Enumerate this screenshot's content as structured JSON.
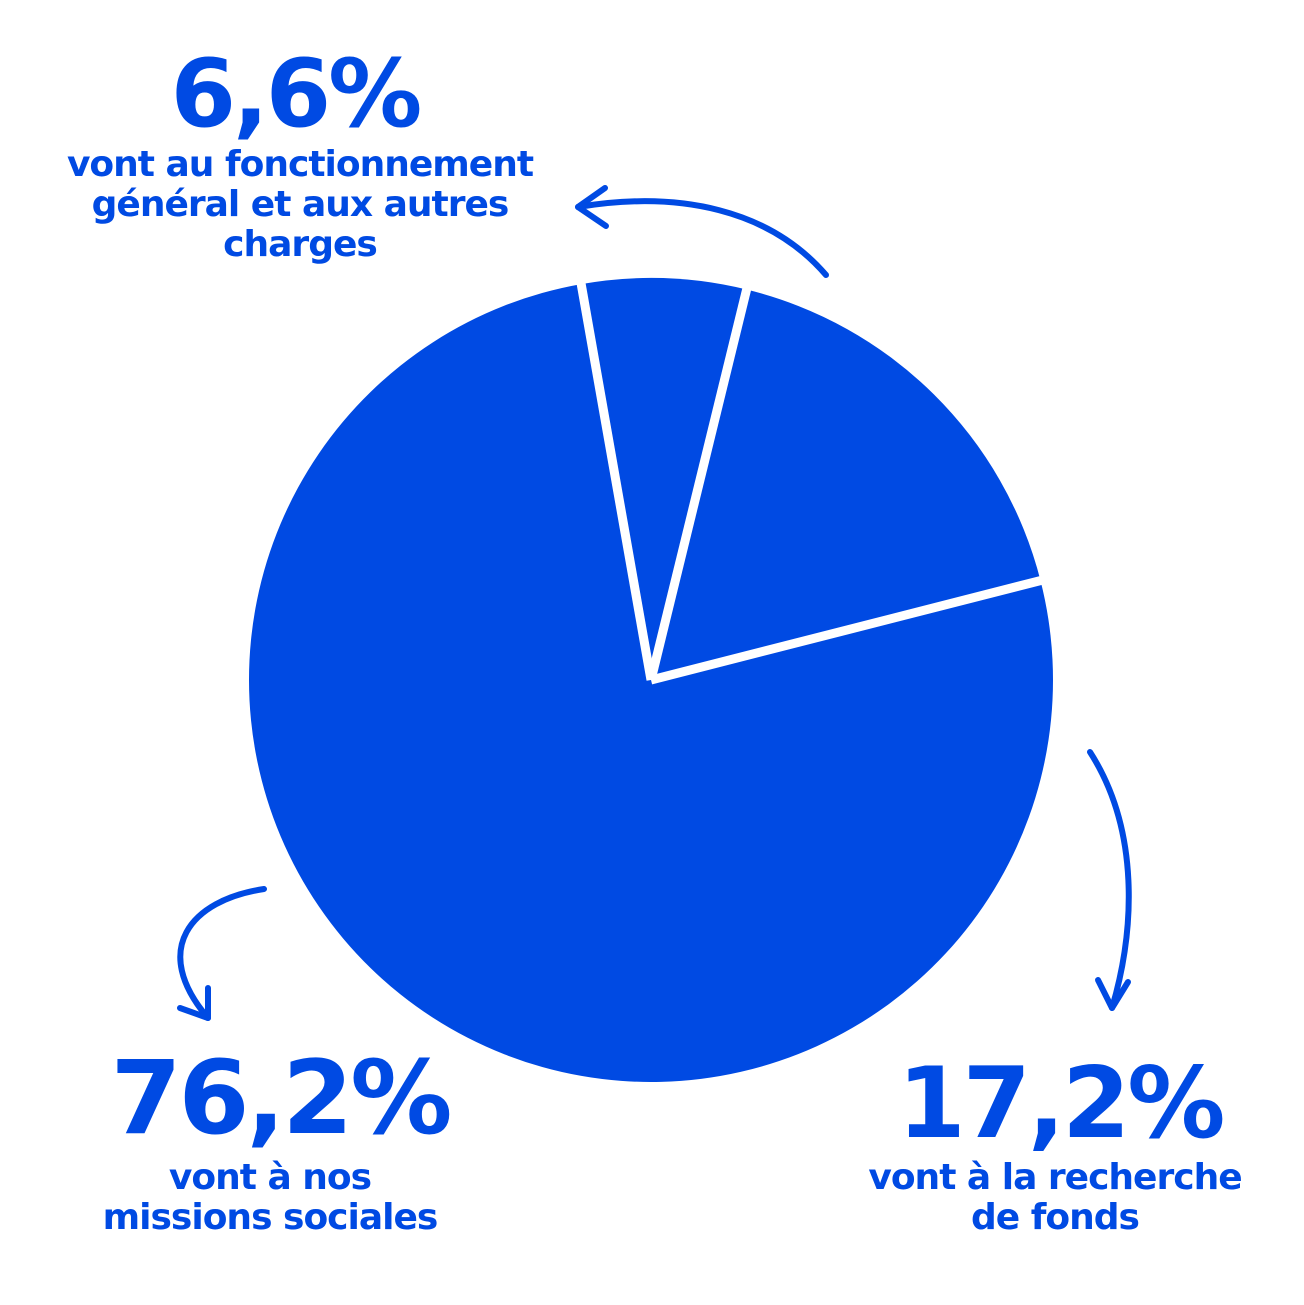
{
  "colors": {
    "accent": "#004ae3",
    "background": "#ffffff",
    "separator": "#ffffff"
  },
  "chart_data": {
    "type": "pie",
    "categories": [
      "vont au fonctionnement général et aux autres charges",
      "vont à la recherche de fonds",
      "vont à nos missions sociales"
    ],
    "values": [
      6.6,
      17.2,
      76.2
    ],
    "unit": "%",
    "legend": "none",
    "annotations": [
      {
        "value_label": "6,6%",
        "lines": [
          "vont au fonctionnement",
          "général et aux autres",
          "charges"
        ],
        "placement": "top"
      },
      {
        "value_label": "17,2%",
        "lines": [
          "vont à la recherche",
          "de fonds"
        ],
        "placement": "bottom-right"
      },
      {
        "value_label": "76,2%",
        "lines": [
          "vont à nos",
          "missions sociales"
        ],
        "placement": "bottom-left"
      }
    ]
  }
}
